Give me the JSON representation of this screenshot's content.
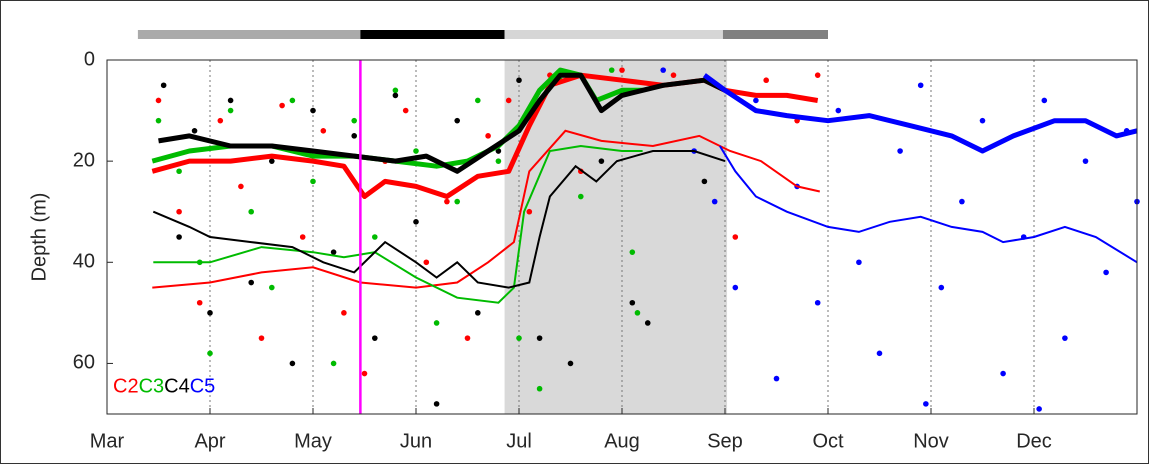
{
  "chart_data": {
    "type": "line",
    "ylabel": "Depth (m)",
    "xlim": [
      0,
      10
    ],
    "ylim": [
      0,
      70
    ],
    "y_inverted": true,
    "yticks": [
      0,
      20,
      40,
      60
    ],
    "xticks": [
      {
        "value": 0,
        "label": "Mar"
      },
      {
        "value": 1,
        "label": "Apr"
      },
      {
        "value": 2,
        "label": "May"
      },
      {
        "value": 3,
        "label": "Jun"
      },
      {
        "value": 4,
        "label": "Jul"
      },
      {
        "value": 5,
        "label": "Aug"
      },
      {
        "value": 6,
        "label": "Sep"
      },
      {
        "value": 7,
        "label": "Oct"
      },
      {
        "value": 8,
        "label": "Nov"
      },
      {
        "value": 9,
        "label": "Dec"
      }
    ],
    "grid_x": true,
    "shade": {
      "x": [
        3.86,
        6.02
      ],
      "color": "#d9d9d9"
    },
    "marker_line": {
      "x": 2.46,
      "color": "#ff00ff"
    },
    "top_bar": [
      {
        "x": [
          0.3,
          2.46
        ],
        "color": "#aaaaaa"
      },
      {
        "x": [
          2.46,
          3.86
        ],
        "color": "#000000"
      },
      {
        "x": [
          3.86,
          5.98
        ],
        "color": "#d6d6d6"
      },
      {
        "x": [
          5.98,
          7.0
        ],
        "color": "#808080"
      }
    ],
    "series": [
      {
        "name": "C2",
        "color": "#ff0000",
        "points_x": [
          0.5,
          0.7,
          0.9,
          1.1,
          1.3,
          1.5,
          1.7,
          1.9,
          2.1,
          2.3,
          2.5,
          2.7,
          2.9,
          3.1,
          3.3,
          3.5,
          3.7,
          3.9,
          4.1,
          4.3,
          4.6,
          5.0,
          5.5,
          6.1,
          6.4,
          6.7,
          6.9
        ],
        "points_values": [
          8,
          30,
          48,
          12,
          25,
          55,
          9,
          35,
          14,
          50,
          62,
          20,
          10,
          40,
          28,
          55,
          15,
          8,
          30,
          3,
          22,
          2,
          3,
          35,
          4,
          12,
          3
        ],
        "bold_x": [
          0.44,
          0.8,
          1.2,
          1.6,
          2.0,
          2.3,
          2.5,
          2.7,
          3.0,
          3.3,
          3.6,
          3.9,
          4.1,
          4.3,
          4.6,
          5.0,
          5.4,
          5.8,
          6.0,
          6.3,
          6.6,
          6.9
        ],
        "bold_values": [
          22,
          20,
          20,
          19,
          20,
          21,
          27,
          24,
          25,
          27,
          23,
          22,
          13,
          5,
          3,
          4,
          5,
          4,
          6,
          7,
          7,
          8
        ],
        "line_x": [
          0.44,
          1.0,
          1.5,
          2.0,
          2.46,
          3.0,
          3.4,
          3.7,
          3.95,
          4.1,
          4.45,
          4.8,
          5.3,
          5.75,
          6.05,
          6.35,
          6.7,
          6.92
        ],
        "line_values": [
          45,
          44,
          42,
          41,
          44,
          45,
          44,
          40,
          36,
          22,
          14,
          16,
          17,
          15,
          18,
          20,
          25,
          26
        ]
      },
      {
        "name": "C3",
        "color": "#00bb00",
        "points_x": [
          0.5,
          0.7,
          0.9,
          1.0,
          1.2,
          1.4,
          1.6,
          1.8,
          2.0,
          2.2,
          2.4,
          2.6,
          2.8,
          3.0,
          3.2,
          3.4,
          3.6,
          3.8,
          4.0,
          4.2,
          4.4,
          4.6,
          4.9,
          5.15,
          5.1
        ],
        "points_values": [
          12,
          22,
          40,
          58,
          10,
          30,
          45,
          8,
          24,
          60,
          12,
          35,
          6,
          18,
          52,
          28,
          8,
          20,
          55,
          65,
          4,
          27,
          2,
          50,
          38
        ],
        "bold_x": [
          0.44,
          0.8,
          1.2,
          1.6,
          2.0,
          2.4,
          2.8,
          3.2,
          3.5,
          3.8,
          4.0,
          4.2,
          4.4,
          4.6,
          4.75,
          5.0,
          5.2
        ],
        "bold_values": [
          20,
          18,
          17,
          17,
          19,
          19,
          20,
          21,
          20,
          17,
          13,
          6,
          2,
          3,
          8,
          6,
          6
        ],
        "line_x": [
          0.45,
          1.0,
          1.5,
          2.0,
          2.3,
          2.6,
          3.0,
          3.4,
          3.8,
          3.95,
          4.05,
          4.3,
          4.6,
          5.0,
          5.2
        ],
        "line_values": [
          40,
          40,
          37,
          38,
          39,
          38,
          43,
          47,
          48,
          45,
          30,
          18,
          17,
          18,
          18
        ]
      },
      {
        "name": "C4",
        "color": "#000000",
        "points_x": [
          0.55,
          0.7,
          0.85,
          1.0,
          1.2,
          1.4,
          1.6,
          1.8,
          2.0,
          2.2,
          2.4,
          2.6,
          2.8,
          3.0,
          3.2,
          3.4,
          3.6,
          3.8,
          4.0,
          4.2,
          4.5,
          4.8,
          5.1,
          5.25,
          5.8
        ],
        "points_values": [
          5,
          35,
          14,
          50,
          8,
          44,
          20,
          60,
          10,
          38,
          15,
          55,
          7,
          32,
          68,
          12,
          50,
          18,
          4,
          55,
          60,
          20,
          48,
          52,
          24
        ],
        "bold_x": [
          0.5,
          0.8,
          1.2,
          1.6,
          2.0,
          2.4,
          2.8,
          3.1,
          3.4,
          3.7,
          4.0,
          4.2,
          4.4,
          4.6,
          4.8,
          5.0,
          5.4,
          5.8,
          6.0
        ],
        "bold_values": [
          16,
          15,
          17,
          17,
          18,
          19,
          20,
          19,
          22,
          18,
          14,
          8,
          3,
          3,
          10,
          7,
          5,
          4,
          6
        ],
        "line_x": [
          0.45,
          0.8,
          1.0,
          1.4,
          1.8,
          2.1,
          2.4,
          2.7,
          3.0,
          3.2,
          3.4,
          3.6,
          3.9,
          4.1,
          4.2,
          4.3,
          4.55,
          4.75,
          4.95,
          5.3,
          5.7,
          6.0
        ],
        "line_values": [
          30,
          33,
          35,
          36,
          37,
          40,
          42,
          36,
          40,
          43,
          40,
          44,
          45,
          44,
          35,
          27,
          21,
          24,
          20,
          18,
          18,
          20
        ]
      },
      {
        "name": "C5",
        "color": "#0000ff",
        "points_x": [
          5.4,
          5.7,
          5.9,
          6.1,
          6.3,
          6.5,
          6.7,
          6.9,
          7.1,
          7.3,
          7.5,
          7.7,
          7.9,
          8.1,
          8.3,
          8.5,
          8.7,
          8.9,
          9.1,
          9.3,
          9.5,
          9.7,
          9.9,
          10.0,
          9.05,
          7.95
        ],
        "points_values": [
          2,
          18,
          28,
          45,
          8,
          63,
          25,
          48,
          10,
          40,
          58,
          18,
          5,
          45,
          28,
          12,
          62,
          35,
          8,
          55,
          20,
          42,
          14,
          28,
          69,
          68
        ],
        "bold_x": [
          5.8,
          6.0,
          6.3,
          6.6,
          7.0,
          7.4,
          7.8,
          8.2,
          8.5,
          8.8,
          9.2,
          9.5,
          9.8,
          10.0
        ],
        "bold_values": [
          3,
          6,
          10,
          11,
          12,
          11,
          13,
          15,
          18,
          15,
          12,
          12,
          15,
          14
        ],
        "line_x": [
          5.95,
          6.1,
          6.3,
          6.6,
          7.0,
          7.3,
          7.6,
          7.9,
          8.2,
          8.5,
          8.7,
          9.0,
          9.3,
          9.6,
          10.0
        ],
        "line_values": [
          17,
          22,
          27,
          30,
          33,
          34,
          32,
          31,
          33,
          34,
          36,
          35,
          33,
          35,
          40
        ]
      }
    ]
  }
}
